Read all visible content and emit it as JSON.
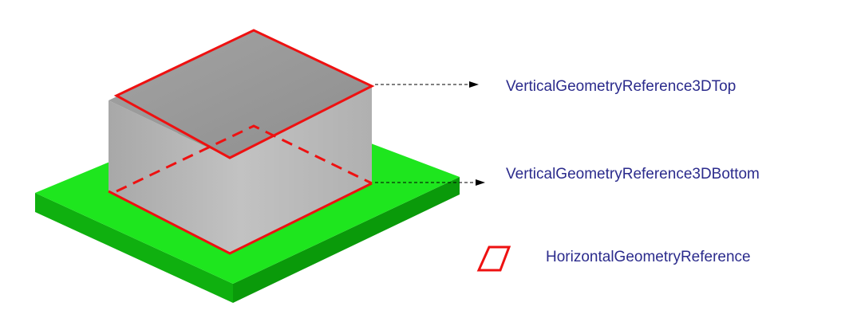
{
  "labels": {
    "vertical_top": "VerticalGeometryReference3DTop",
    "vertical_bottom": "VerticalGeometryReference3DBottom",
    "horizontal": "HorizontalGeometryReference"
  },
  "colors": {
    "label_text": "#2b2b8c",
    "reference_outline": "#ee1111",
    "ground_plate_top": "#1ee61e",
    "ground_plate_side": "#0fb00f",
    "building_top": "#9a9a9a",
    "building_front": "#b5b5b5",
    "arrow": "#000000"
  },
  "icons": {
    "legend_shape": "red-parallelogram-icon"
  }
}
